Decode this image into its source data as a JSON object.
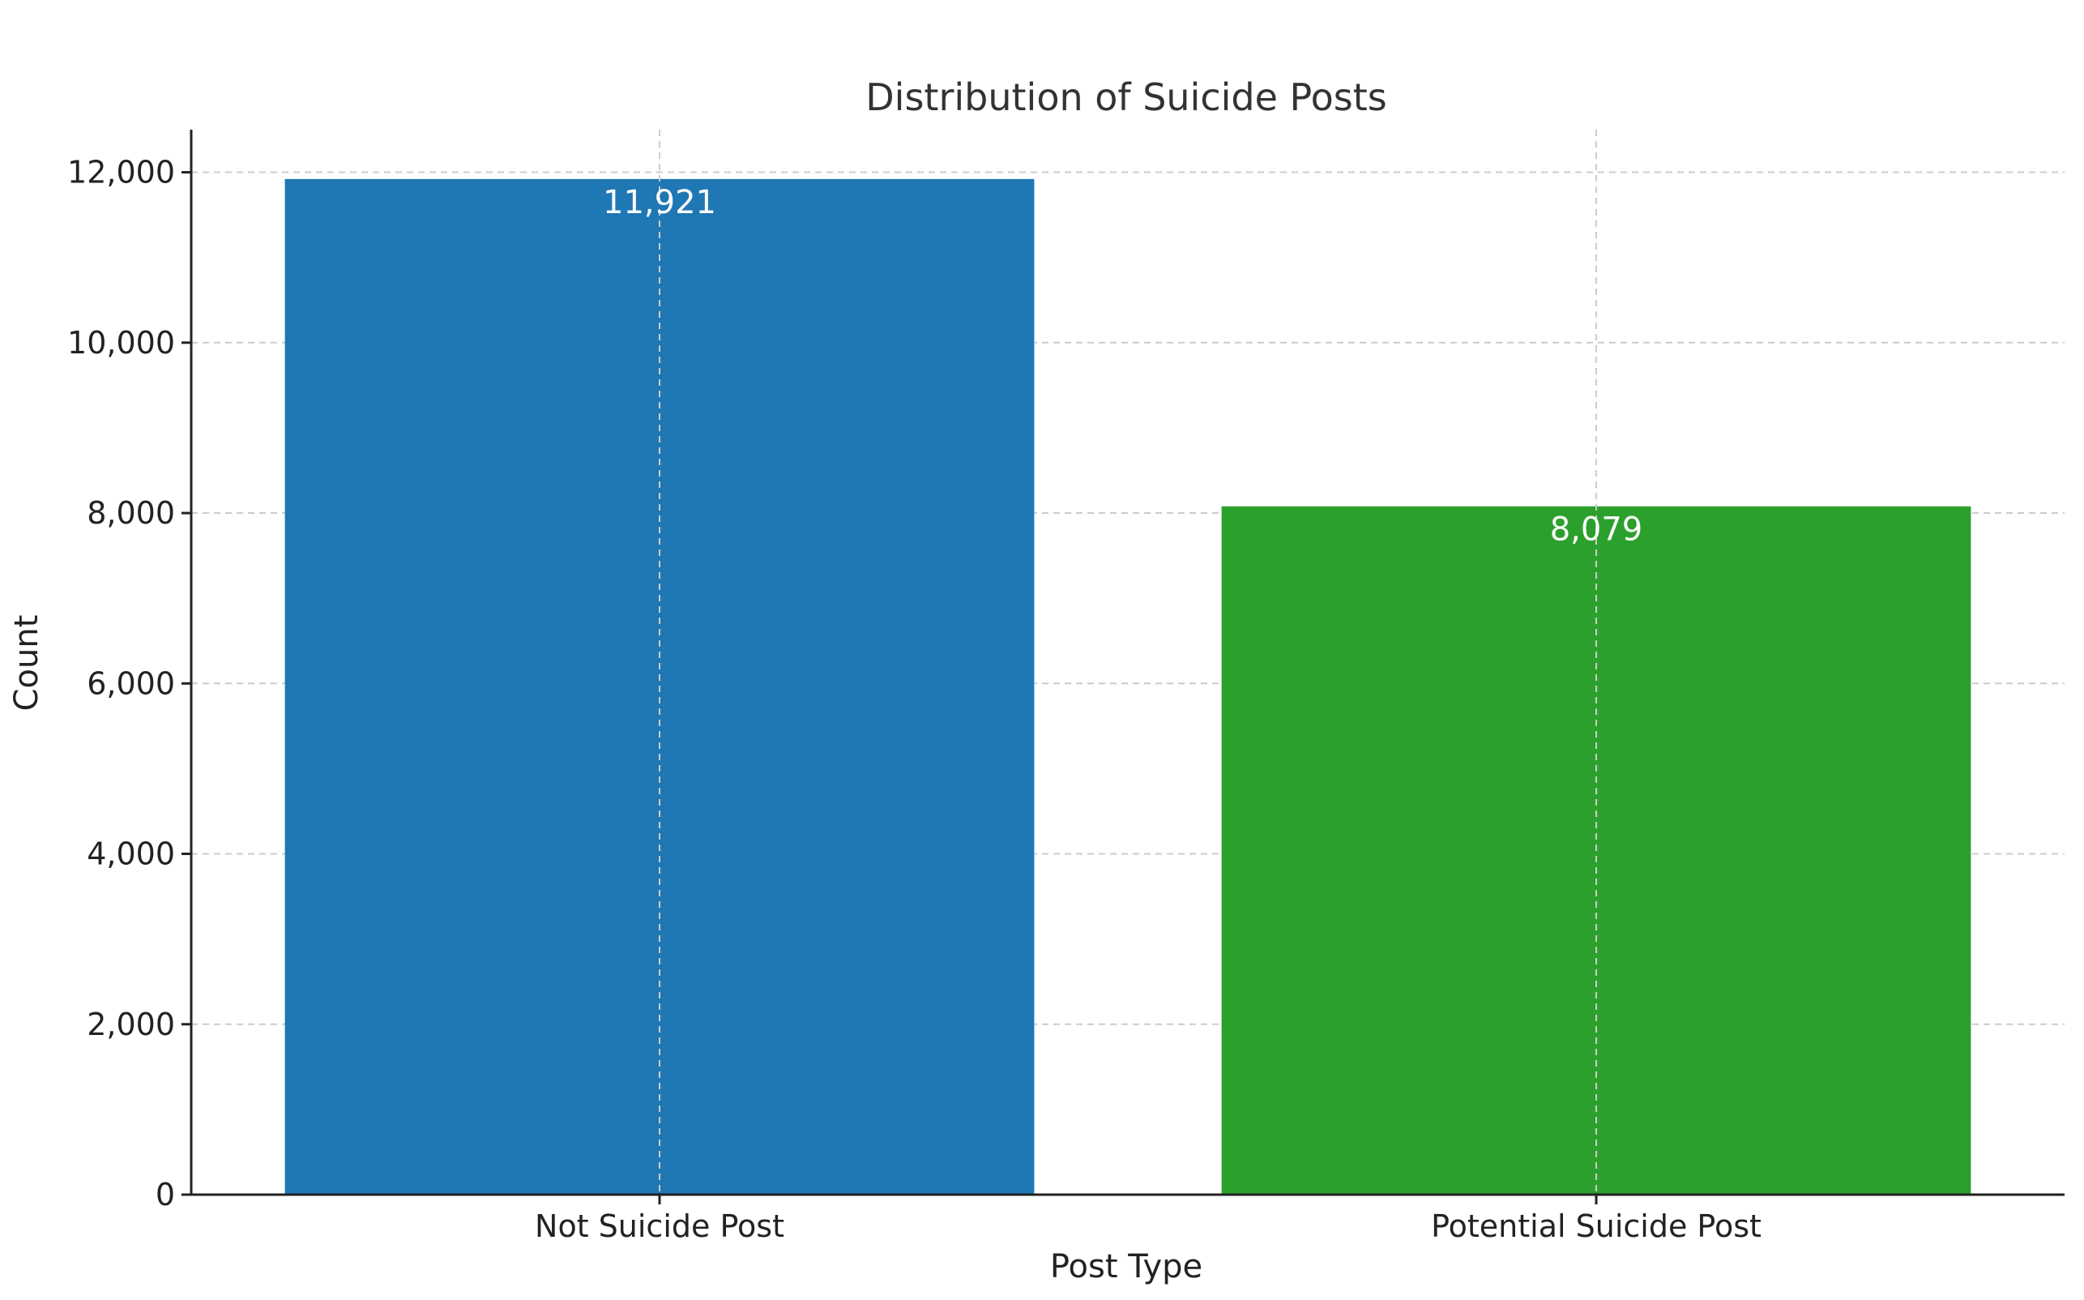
{
  "chart_data": {
    "type": "bar",
    "title": "Distribution of Suicide Posts",
    "xlabel": "Post Type",
    "ylabel": "Count",
    "categories": [
      "Not Suicide Post",
      "Potential Suicide Post"
    ],
    "values": [
      11921,
      8079
    ],
    "value_labels": [
      "11,921",
      "8,079"
    ],
    "colors": [
      "#1f77b4",
      "#2ca02c"
    ],
    "ylim": [
      0,
      12500
    ],
    "yticks": [
      0,
      2000,
      4000,
      6000,
      8000,
      10000,
      12000
    ],
    "ytick_labels": [
      "0",
      "2,000",
      "4,000",
      "6,000",
      "8,000",
      "10,000",
      "12,000"
    ],
    "grid": true
  }
}
